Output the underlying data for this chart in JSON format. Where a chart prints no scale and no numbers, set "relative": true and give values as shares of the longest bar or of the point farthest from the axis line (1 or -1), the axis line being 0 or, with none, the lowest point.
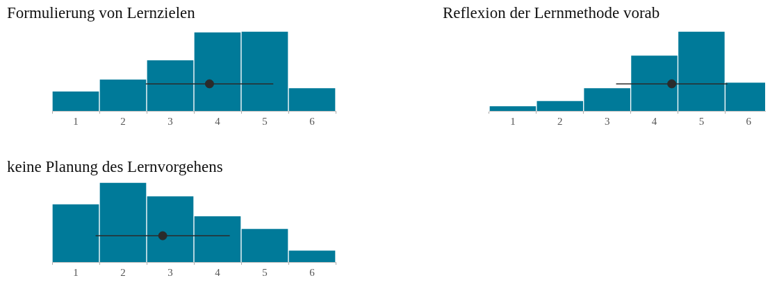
{
  "chart_data": [
    {
      "type": "bar",
      "title": "Formulierung von Lernzielen",
      "relative": true,
      "x": [
        1,
        2,
        3,
        4,
        5,
        6
      ],
      "values": [
        0.25,
        0.4,
        0.64,
        0.99,
        1,
        0.29
      ],
      "color": "#007a99",
      "xlim": [
        0.5,
        6.5
      ],
      "xticks": [
        1,
        2,
        3,
        4,
        5,
        6
      ],
      "series": [
        {
          "type": "scatter",
          "color": "#2b2b2b",
          "x": [
            3.83
          ],
          "values": [
            0.34
          ],
          "xerrors": [
            1.35
          ]
        }
      ]
    },
    {
      "type": "bar",
      "title": "Reflexion der Lernmethode vorab",
      "relative": true,
      "x": [
        1,
        2,
        3,
        4,
        5,
        6
      ],
      "values": [
        0.065,
        0.13,
        0.29,
        0.7,
        1,
        0.36
      ],
      "color": "#007a99",
      "xlim": [
        0.5,
        6.35
      ],
      "xticks": [
        1,
        2,
        3,
        4,
        5,
        6
      ],
      "series": [
        {
          "type": "scatter",
          "color": "#2b2b2b",
          "x": [
            4.37
          ],
          "values": [
            0.34
          ],
          "xerrors": [
            1.18
          ]
        }
      ]
    },
    {
      "type": "bar",
      "title": "keine Planung des Lernvorgehens",
      "relative": true,
      "x": [
        1,
        2,
        3,
        4,
        5,
        6
      ],
      "values": [
        0.73,
        1,
        0.83,
        0.58,
        0.42,
        0.15
      ],
      "color": "#007a99",
      "xlim": [
        0.5,
        6.5
      ],
      "xticks": [
        1,
        2,
        3,
        4,
        5,
        6
      ],
      "series": [
        {
          "type": "scatter",
          "color": "#2b2b2b",
          "x": [
            2.84
          ],
          "values": [
            0.33
          ],
          "xerrors": [
            1.42
          ]
        }
      ]
    }
  ]
}
